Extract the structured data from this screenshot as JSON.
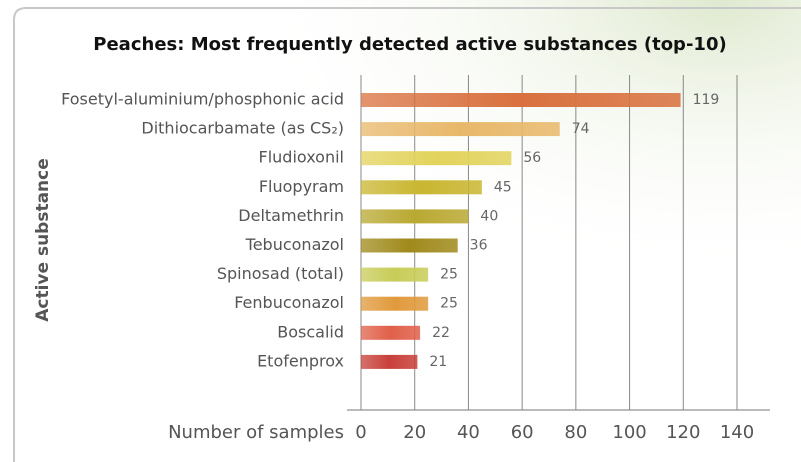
{
  "chart_data": {
    "type": "barh",
    "title": "Peaches: Most frequently detected active substances (top-10)",
    "categories": [
      "Fosetyl-aluminium/phosphonic acid",
      "Dithiocarbamate (as CS₂)",
      "Fludioxonil",
      "Fluopyram",
      "Deltamethrin",
      "Tebuconazol",
      "Spinosad (total)",
      "Fenbuconazol",
      "Boscalid",
      "Etofenprox"
    ],
    "values": [
      119,
      74,
      56,
      45,
      40,
      36,
      25,
      25,
      22,
      21
    ],
    "colors": [
      "#d9713f",
      "#e8b86a",
      "#e2d35c",
      "#c9b630",
      "#b9a932",
      "#a08a1c",
      "#c8cc58",
      "#e09a3c",
      "#e0604a",
      "#c8403a"
    ],
    "xlabel": "Number of samples",
    "ylabel": "Active substance",
    "xlim": [
      0,
      140
    ],
    "xticks": [
      0,
      20,
      40,
      60,
      80,
      100,
      120,
      140
    ],
    "grid": true
  }
}
